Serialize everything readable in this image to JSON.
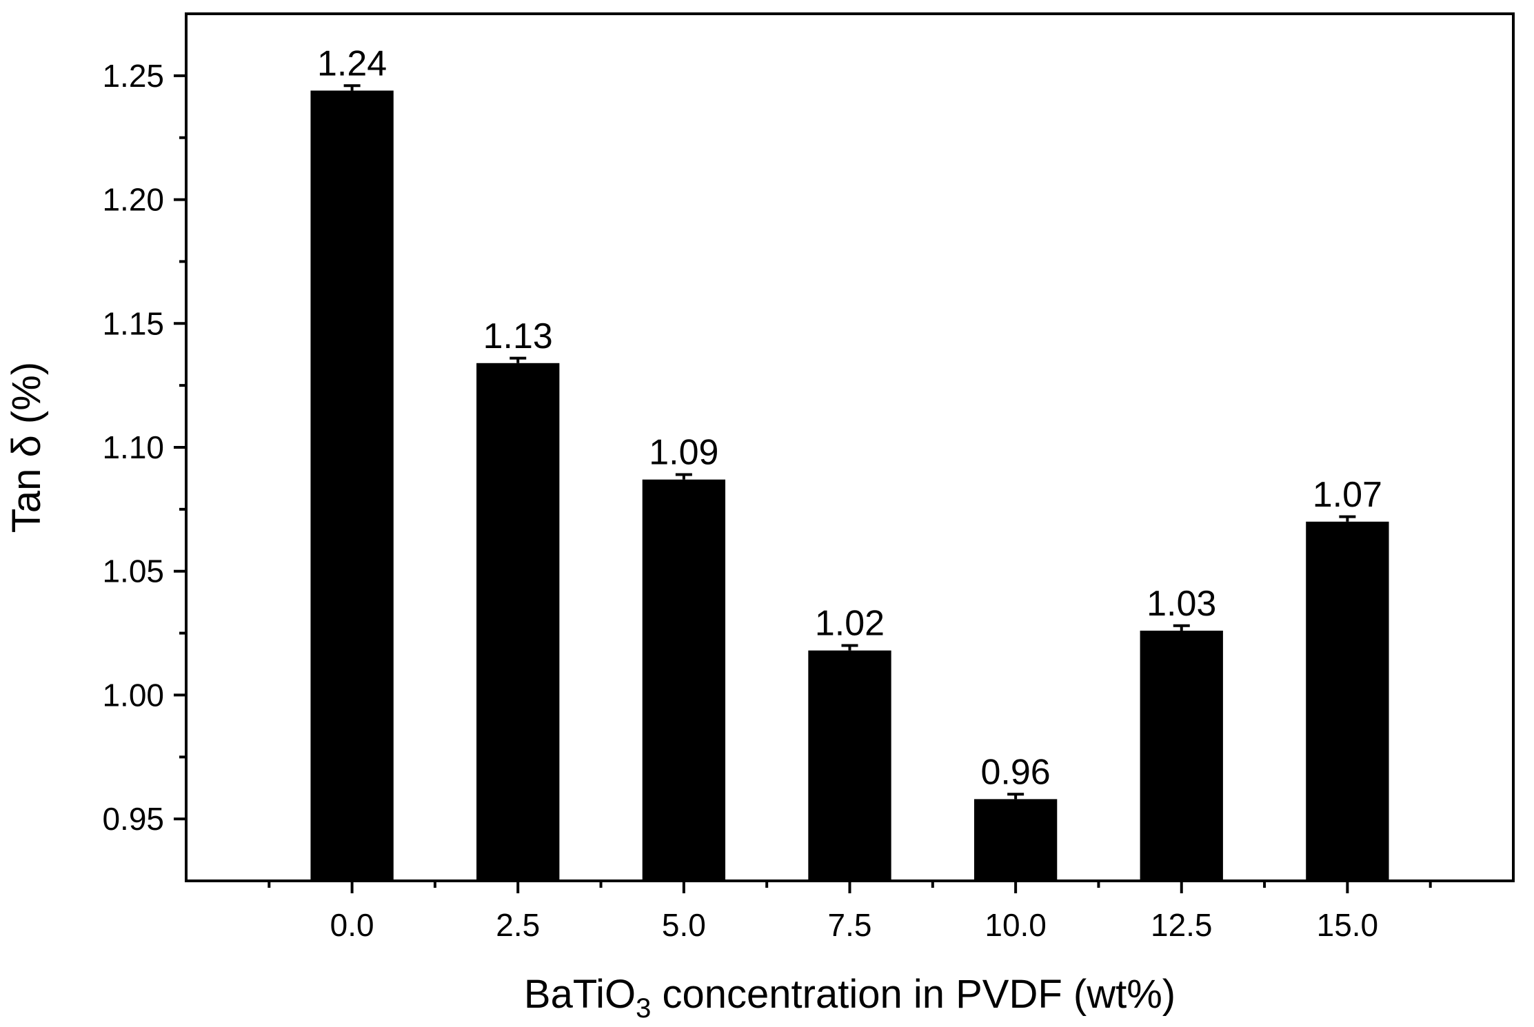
{
  "chart_data": {
    "type": "bar",
    "categories": [
      "0.0",
      "2.5",
      "5.0",
      "7.5",
      "10.0",
      "12.5",
      "15.0"
    ],
    "x": [
      0.0,
      2.5,
      5.0,
      7.5,
      10.0,
      12.5,
      15.0
    ],
    "values": [
      1.244,
      1.134,
      1.087,
      1.018,
      0.958,
      1.026,
      1.07
    ],
    "errors": [
      0.002,
      0.002,
      0.002,
      0.002,
      0.002,
      0.002,
      0.002
    ],
    "data_labels": [
      "1.24",
      "1.13",
      "1.09",
      "1.02",
      "0.96",
      "1.03",
      "1.07"
    ],
    "xlabel_main": "BaTiO",
    "xlabel_sub": "3",
    "xlabel_rest": " concentration in PVDF (wt%)",
    "ylabel": "Tan δ (%)",
    "ylim": [
      0.925,
      1.275
    ],
    "xlim": [
      -2.5,
      17.5
    ],
    "yticks": [
      0.95,
      1.0,
      1.05,
      1.1,
      1.15,
      1.2,
      1.25
    ],
    "ytick_labels": [
      "0.95",
      "1.00",
      "1.05",
      "1.10",
      "1.15",
      "1.20",
      "1.25"
    ],
    "bar_width": 1.25,
    "bar_color": "#000000",
    "grid": false,
    "legend": "none"
  }
}
